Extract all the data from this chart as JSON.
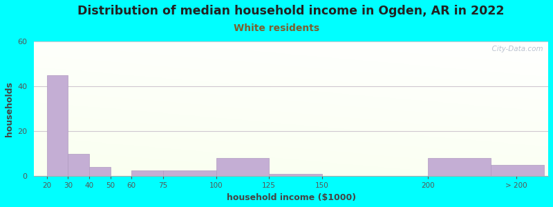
{
  "title": "Distribution of median household income in Ogden, AR in 2022",
  "subtitle": "White residents",
  "xlabel": "household income ($1000)",
  "ylabel": "households",
  "background_color": "#00FFFF",
  "bar_color": "#c4aed4",
  "bar_edge_color": "#b09ac0",
  "title_fontsize": 12.5,
  "subtitle_fontsize": 10,
  "subtitle_color": "#7a6030",
  "ylim": [
    0,
    60
  ],
  "yticks": [
    0,
    20,
    40,
    60
  ],
  "watermark": "  City-Data.com",
  "positions": [
    20,
    30,
    40,
    50,
    60,
    75,
    100,
    125,
    150,
    200,
    230
  ],
  "widths": [
    10,
    10,
    10,
    10,
    15,
    25,
    25,
    25,
    50,
    30,
    25
  ],
  "values": [
    45,
    10,
    4,
    0,
    2.5,
    2.5,
    8,
    1,
    0,
    8,
    5
  ],
  "xtick_positions": [
    20,
    30,
    40,
    50,
    60,
    75,
    100,
    125,
    150,
    200,
    242
  ],
  "xtick_labels": [
    "20",
    "30",
    "40",
    "50",
    "60",
    "75",
    "100",
    "125",
    "150",
    "200",
    "> 200"
  ],
  "xlim": [
    14,
    257
  ]
}
